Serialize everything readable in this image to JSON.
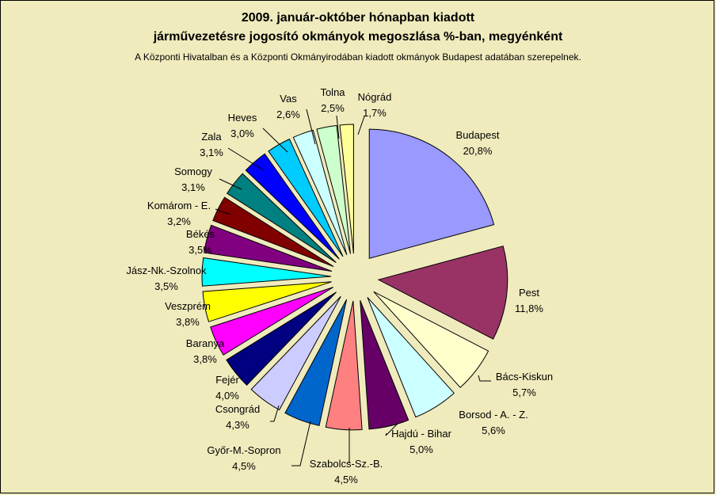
{
  "title_line1": "2009. január-október hónapban kiadott",
  "title_line2": "járművezetésre jogosító okmányok megoszlása %-ban, megyénként",
  "subtitle": "A Központi Hivatalban és a Központi Okmányirodában kiadott okmányok Budapest adatában szerepelnek.",
  "chart_data": {
    "type": "pie",
    "exploded": true,
    "unit": "%",
    "slices": [
      {
        "label": "Budapest",
        "value_text": "20,8%",
        "value": 20.8,
        "color": "#9999ff"
      },
      {
        "label": "Pest",
        "value_text": "11,8%",
        "value": 11.8,
        "color": "#993366"
      },
      {
        "label": "Bács-Kiskun",
        "value_text": "5,7%",
        "value": 5.7,
        "color": "#ffffcc"
      },
      {
        "label": "Borsod - A. - Z.",
        "value_text": "5,6%",
        "value": 5.6,
        "color": "#ccffff"
      },
      {
        "label": "Hajdú - Bihar",
        "value_text": "5,0%",
        "value": 5.0,
        "color": "#660066"
      },
      {
        "label": "Szabolcs-Sz.-B.",
        "value_text": "4,5%",
        "value": 4.5,
        "color": "#ff8080"
      },
      {
        "label": "Győr-M.-Sopron",
        "value_text": "4,5%",
        "value": 4.5,
        "color": "#0066cc"
      },
      {
        "label": "Csongrád",
        "value_text": "4,3%",
        "value": 4.3,
        "color": "#ccccff"
      },
      {
        "label": "Fejér",
        "value_text": "4,0%",
        "value": 4.0,
        "color": "#000080"
      },
      {
        "label": "Baranya",
        "value_text": "3,8%",
        "value": 3.8,
        "color": "#ff00ff"
      },
      {
        "label": "Veszprém",
        "value_text": "3,8%",
        "value": 3.8,
        "color": "#ffff00"
      },
      {
        "label": "Jász-Nk.-Szolnok",
        "value_text": "3,5%",
        "value": 3.5,
        "color": "#00ffff"
      },
      {
        "label": "Békés",
        "value_text": "3,5%",
        "value": 3.5,
        "color": "#800080"
      },
      {
        "label": "Komárom - E.",
        "value_text": "3,2%",
        "value": 3.2,
        "color": "#800000"
      },
      {
        "label": "Somogy",
        "value_text": "3,1%",
        "value": 3.1,
        "color": "#008080"
      },
      {
        "label": "Zala",
        "value_text": "3,1%",
        "value": 3.1,
        "color": "#0000ff"
      },
      {
        "label": "Heves",
        "value_text": "3,0%",
        "value": 3.0,
        "color": "#00ccff"
      },
      {
        "label": "Vas",
        "value_text": "2,6%",
        "value": 2.6,
        "color": "#ccffff"
      },
      {
        "label": "Tolna",
        "value_text": "2,5%",
        "value": 2.5,
        "color": "#ccffcc"
      },
      {
        "label": "Nógrád",
        "value_text": "1,7%",
        "value": 1.7,
        "color": "#ffff99"
      }
    ]
  }
}
